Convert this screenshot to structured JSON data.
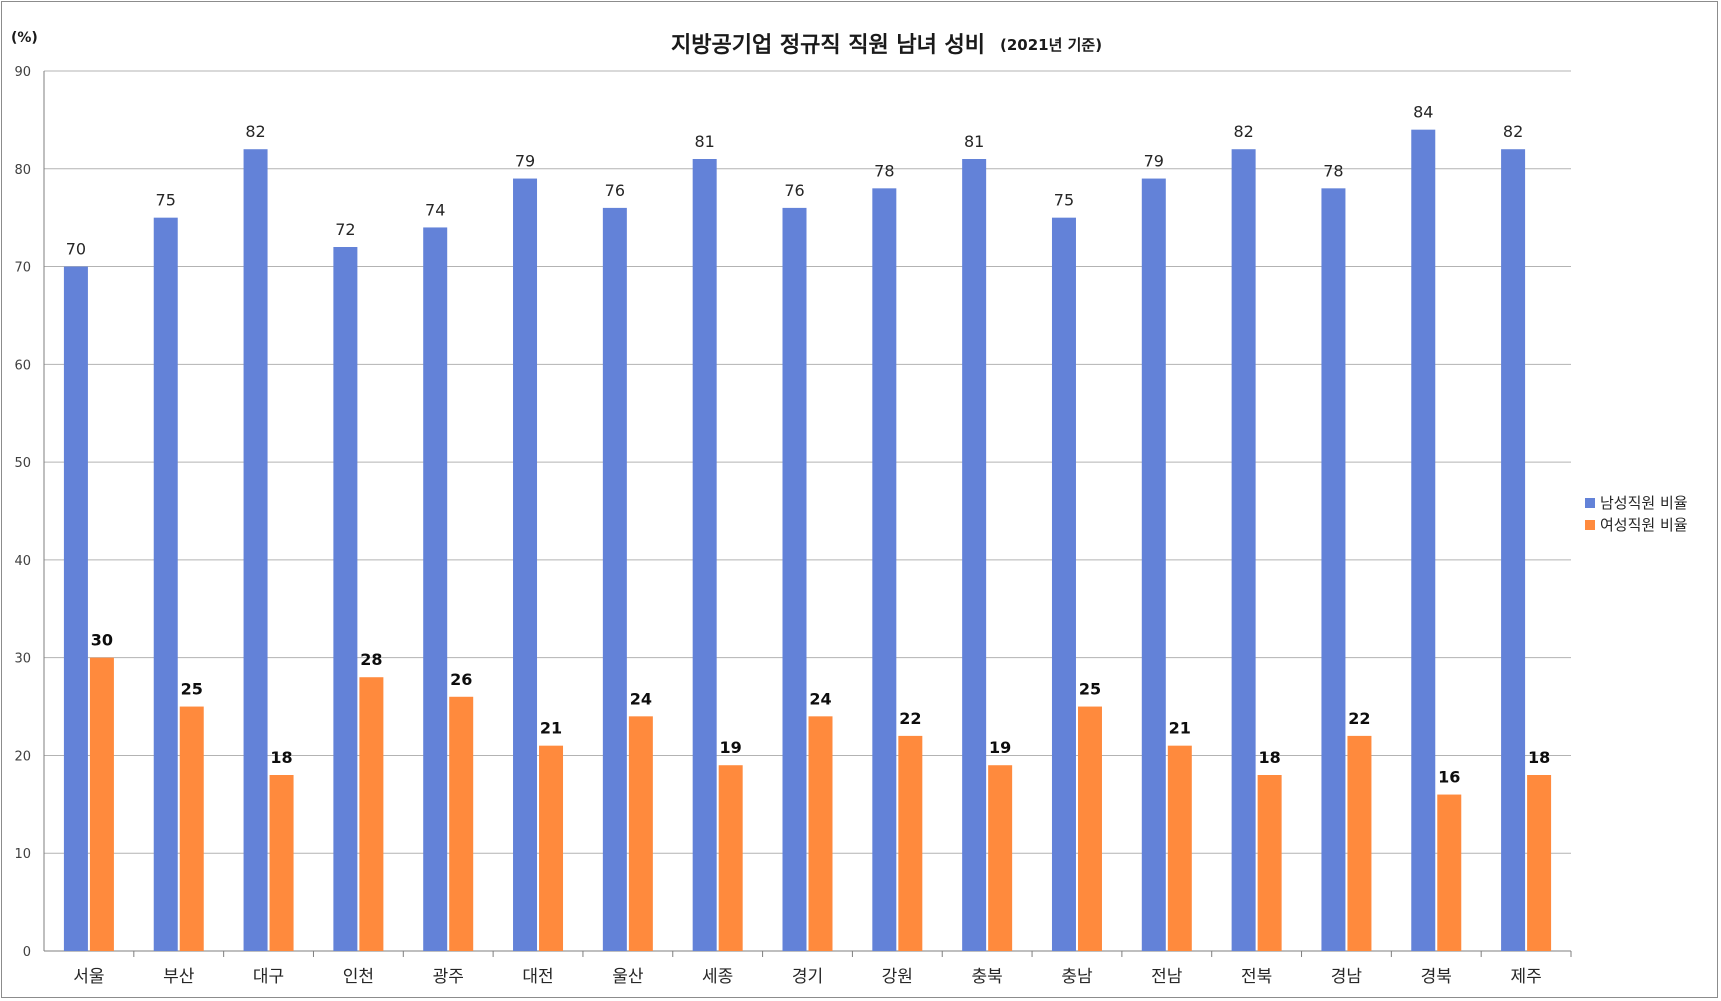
{
  "chart_data": {
    "type": "bar",
    "title": "지방공기업 정규직 직원 남녀 성비",
    "subtitle": "(2021년 기준)",
    "ylabel": "(%)",
    "xlabel": "",
    "ylim": [
      0,
      90
    ],
    "yticks": [
      0,
      10,
      20,
      30,
      40,
      50,
      60,
      70,
      80,
      90
    ],
    "grid": true,
    "legend_position": "right",
    "categories": [
      "서울",
      "부산",
      "대구",
      "인천",
      "광주",
      "대전",
      "울산",
      "세종",
      "경기",
      "강원",
      "충북",
      "충남",
      "전남",
      "전북",
      "경남",
      "경북",
      "제주"
    ],
    "series": [
      {
        "name": "남성직원 비율",
        "color": "#6382d8",
        "values": [
          70,
          75,
          82,
          72,
          74,
          79,
          76,
          81,
          76,
          78,
          81,
          75,
          79,
          82,
          78,
          84,
          82
        ]
      },
      {
        "name": "여성직원 비율",
        "color": "#ff8a3d",
        "values": [
          30,
          25,
          18,
          28,
          26,
          21,
          24,
          19,
          24,
          22,
          19,
          25,
          21,
          18,
          22,
          16,
          18
        ]
      }
    ]
  },
  "colors": {
    "grid": "#b3b3b3",
    "axis": "#7f7f7f"
  }
}
